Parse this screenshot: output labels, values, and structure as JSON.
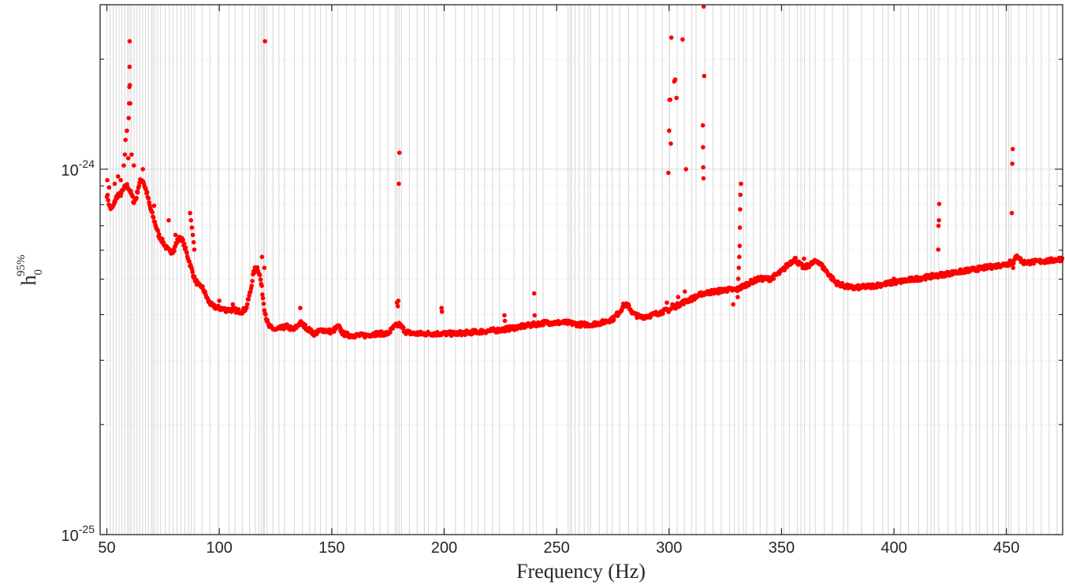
{
  "chart_data": {
    "type": "scatter",
    "title": "",
    "xlabel": "Frequency    (Hz)",
    "ylabel": {
      "base": "h",
      "subscript": "0",
      "superscript": "95%"
    },
    "xlim": [
      47,
      475
    ],
    "ylim_log10": [
      -25,
      -23.55
    ],
    "yscale": "log",
    "grid": true,
    "x_ticks": [
      50,
      100,
      150,
      200,
      250,
      300,
      350,
      400,
      450
    ],
    "x_tick_labels": [
      "50",
      "100",
      "150",
      "200",
      "250",
      "300",
      "350",
      "400",
      "450"
    ],
    "y_major_ticks": [
      {
        "value": 1e-25,
        "base": "10",
        "exp": "-25"
      },
      {
        "value": 1e-24,
        "base": "10",
        "exp": "-24"
      }
    ],
    "marker_color": "#ff0000",
    "vetoed_band_line_color": "#d9d9d9",
    "vetoed_bands_hz": [
      51.5,
      52.8,
      54.1,
      55.4,
      56.7,
      58.0,
      59.2,
      60.0,
      60.8,
      62.1,
      63.4,
      64.6,
      65.9,
      67.2,
      68.5,
      69.8,
      70.5,
      71.3,
      72.6,
      73.9,
      76.0,
      77.8,
      79.5,
      81.2,
      83.0,
      84.7,
      86.3,
      87.5,
      89.0,
      92.3,
      95.8,
      99.5,
      104.3,
      107.0,
      110.2,
      113.5,
      116.0,
      117.5,
      118.6,
      119.5,
      120.0,
      121.2,
      123.8,
      126.5,
      129.0,
      133.4,
      137.0,
      140.2,
      142.6,
      145.0,
      147.5,
      150.2,
      152.6,
      156.5,
      160.3,
      164.8,
      168.5,
      171.4,
      175.0,
      178.2,
      179.0,
      180.0,
      181.0,
      184.5,
      188.0,
      191.2,
      193.0,
      196.5,
      199.8,
      205.0,
      209.0,
      212.3,
      215.0,
      218.0,
      221.5,
      224.6,
      231.0,
      235.0,
      238.0,
      241.0,
      244.0,
      255.1,
      256.0,
      256.7,
      258.2,
      260.0,
      262.3,
      264.0,
      265.1,
      269.0,
      272.4,
      274.7,
      278.0,
      282.0,
      286.0,
      289.6,
      293.3,
      297.0,
      300.2,
      303.6,
      306.8,
      310.0,
      312.0,
      316.0,
      319.6,
      323.2,
      326.9,
      329.0,
      331.0,
      333.0,
      334.2,
      337.5,
      340.5,
      343.5,
      347.0,
      351.0,
      353.5,
      357.0,
      358.6,
      360.2,
      362.5,
      365.0,
      369.0,
      372.6,
      377.5,
      379.5,
      385.5,
      391.0,
      395.0,
      397.5,
      403.0,
      406.5,
      411.0,
      414.8,
      416.5,
      418.0,
      419.9,
      424.0,
      427.5,
      430.5,
      433.9,
      436.5,
      438.0,
      441.5,
      444.0,
      446.5,
      449.7,
      451.0,
      452.0,
      455.5,
      459.0,
      462.0,
      465.5,
      469.0,
      472.5
    ],
    "baseline_curve_log10": [
      [
        50,
        -24.07
      ],
      [
        50.5,
        -24.08
      ],
      [
        51,
        -24.1
      ],
      [
        52,
        -24.11
      ],
      [
        53,
        -24.1
      ],
      [
        54,
        -24.08
      ],
      [
        55,
        -24.07
      ],
      [
        56,
        -24.07
      ],
      [
        57,
        -24.06
      ],
      [
        58,
        -24.05
      ],
      [
        59,
        -24.045
      ],
      [
        60,
        -24.055
      ],
      [
        61,
        -24.07
      ],
      [
        62,
        -24.09
      ],
      [
        63,
        -24.08
      ],
      [
        64,
        -24.05
      ],
      [
        65,
        -24.03
      ],
      [
        66,
        -24.03
      ],
      [
        67,
        -24.05
      ],
      [
        68,
        -24.07
      ],
      [
        69,
        -24.1
      ],
      [
        70,
        -24.12
      ],
      [
        71,
        -24.14
      ],
      [
        72,
        -24.16
      ],
      [
        73,
        -24.18
      ],
      [
        74,
        -24.19
      ],
      [
        75,
        -24.2
      ],
      [
        76,
        -24.21
      ],
      [
        77,
        -24.22
      ],
      [
        78,
        -24.225
      ],
      [
        79,
        -24.225
      ],
      [
        80,
        -24.22
      ],
      [
        81,
        -24.2
      ],
      [
        82,
        -24.19
      ],
      [
        83,
        -24.19
      ],
      [
        84,
        -24.2
      ],
      [
        85,
        -24.22
      ],
      [
        86,
        -24.24
      ],
      [
        87,
        -24.26
      ],
      [
        88,
        -24.28
      ],
      [
        89,
        -24.3
      ],
      [
        90,
        -24.31
      ],
      [
        91,
        -24.32
      ],
      [
        92,
        -24.32
      ],
      [
        93,
        -24.33
      ],
      [
        95,
        -24.36
      ],
      [
        97,
        -24.375
      ],
      [
        100,
        -24.38
      ],
      [
        103,
        -24.385
      ],
      [
        106,
        -24.385
      ],
      [
        110,
        -24.39
      ],
      [
        112,
        -24.38
      ],
      [
        114,
        -24.33
      ],
      [
        115,
        -24.29
      ],
      [
        116,
        -24.27
      ],
      [
        117,
        -24.27
      ],
      [
        118,
        -24.29
      ],
      [
        119,
        -24.33
      ],
      [
        120,
        -24.38
      ],
      [
        121,
        -24.41
      ],
      [
        122,
        -24.43
      ],
      [
        125,
        -24.44
      ],
      [
        130,
        -24.43
      ],
      [
        133,
        -24.44
      ],
      [
        136,
        -24.42
      ],
      [
        138,
        -24.43
      ],
      [
        142,
        -24.45
      ],
      [
        146,
        -24.44
      ],
      [
        150,
        -24.445
      ],
      [
        153,
        -24.43
      ],
      [
        155,
        -24.45
      ],
      [
        158,
        -24.455
      ],
      [
        165,
        -24.455
      ],
      [
        170,
        -24.45
      ],
      [
        175,
        -24.45
      ],
      [
        178,
        -24.43
      ],
      [
        180,
        -24.425
      ],
      [
        183,
        -24.445
      ],
      [
        186,
        -24.45
      ],
      [
        195,
        -24.45
      ],
      [
        205,
        -24.45
      ],
      [
        215,
        -24.445
      ],
      [
        225,
        -24.44
      ],
      [
        235,
        -24.43
      ],
      [
        240,
        -24.425
      ],
      [
        245,
        -24.42
      ],
      [
        250,
        -24.42
      ],
      [
        255,
        -24.42
      ],
      [
        260,
        -24.425
      ],
      [
        265,
        -24.425
      ],
      [
        270,
        -24.42
      ],
      [
        275,
        -24.41
      ],
      [
        278,
        -24.39
      ],
      [
        280,
        -24.37
      ],
      [
        282,
        -24.375
      ],
      [
        284,
        -24.395
      ],
      [
        287,
        -24.405
      ],
      [
        292,
        -24.4
      ],
      [
        297,
        -24.39
      ],
      [
        300,
        -24.385
      ],
      [
        303,
        -24.375
      ],
      [
        306,
        -24.365
      ],
      [
        310,
        -24.355
      ],
      [
        315,
        -24.34
      ],
      [
        320,
        -24.335
      ],
      [
        325,
        -24.33
      ],
      [
        330,
        -24.33
      ],
      [
        333,
        -24.32
      ],
      [
        336,
        -24.31
      ],
      [
        340,
        -24.3
      ],
      [
        345,
        -24.3
      ],
      [
        350,
        -24.28
      ],
      [
        353,
        -24.26
      ],
      [
        356,
        -24.245
      ],
      [
        358,
        -24.26
      ],
      [
        360,
        -24.27
      ],
      [
        363,
        -24.26
      ],
      [
        366,
        -24.25
      ],
      [
        370,
        -24.28
      ],
      [
        374,
        -24.31
      ],
      [
        378,
        -24.32
      ],
      [
        382,
        -24.325
      ],
      [
        390,
        -24.32
      ],
      [
        400,
        -24.31
      ],
      [
        410,
        -24.3
      ],
      [
        420,
        -24.29
      ],
      [
        430,
        -24.28
      ],
      [
        440,
        -24.27
      ],
      [
        450,
        -24.26
      ],
      [
        453,
        -24.255
      ],
      [
        455,
        -24.235
      ],
      [
        457,
        -24.255
      ],
      [
        460,
        -24.255
      ],
      [
        470,
        -24.25
      ],
      [
        475,
        -24.245
      ]
    ],
    "outlier_points_log10": [
      [
        50.2,
        -24.03
      ],
      [
        51.0,
        -24.05
      ],
      [
        53.5,
        -24.04
      ],
      [
        55.0,
        -24.02
      ],
      [
        56.2,
        -24.03
      ],
      [
        57.5,
        -23.99
      ],
      [
        58.0,
        -23.96
      ],
      [
        58.3,
        -23.92
      ],
      [
        58.9,
        -23.895
      ],
      [
        59.5,
        -23.97
      ],
      [
        59.7,
        -23.86
      ],
      [
        59.9,
        -23.82
      ],
      [
        60.0,
        -23.775
      ],
      [
        60.1,
        -23.72
      ],
      [
        60.15,
        -23.65
      ],
      [
        60.2,
        -23.77
      ],
      [
        60.4,
        -23.82
      ],
      [
        61.0,
        -23.96
      ],
      [
        62.0,
        -23.99
      ],
      [
        66.0,
        -24.0
      ],
      [
        71.0,
        -24.1
      ],
      [
        77.5,
        -24.14
      ],
      [
        80.5,
        -24.18
      ],
      [
        87.0,
        -24.12
      ],
      [
        87.4,
        -24.14
      ],
      [
        87.8,
        -24.16
      ],
      [
        88.2,
        -24.18
      ],
      [
        88.6,
        -24.2
      ],
      [
        88.9,
        -24.22
      ],
      [
        100.0,
        -24.36
      ],
      [
        106.0,
        -24.37
      ],
      [
        119.0,
        -24.24
      ],
      [
        120.0,
        -24.27
      ],
      [
        120.3,
        -23.65
      ],
      [
        136.0,
        -24.38
      ],
      [
        179.0,
        -24.365
      ],
      [
        179.4,
        -24.375
      ],
      [
        179.6,
        -24.36
      ],
      [
        179.8,
        -24.04
      ],
      [
        180.1,
        -23.955
      ],
      [
        198.8,
        -24.38
      ],
      [
        199.0,
        -24.39
      ],
      [
        226.8,
        -24.4
      ],
      [
        227.0,
        -24.415
      ],
      [
        240.0,
        -24.34
      ],
      [
        240.2,
        -24.4
      ],
      [
        299.0,
        -24.365
      ],
      [
        299.7,
        -24.01
      ],
      [
        300.0,
        -23.895
      ],
      [
        300.2,
        -23.81
      ],
      [
        300.5,
        -23.81
      ],
      [
        300.8,
        -23.93
      ],
      [
        301.0,
        -23.64
      ],
      [
        301.5,
        -24.37
      ],
      [
        302.3,
        -23.76
      ],
      [
        302.7,
        -23.755
      ],
      [
        303.3,
        -23.805
      ],
      [
        304.0,
        -24.35
      ],
      [
        306.0,
        -23.645
      ],
      [
        307.0,
        -24.335
      ],
      [
        307.5,
        -24.0
      ],
      [
        315.0,
        -23.88
      ],
      [
        315.1,
        -23.94
      ],
      [
        315.2,
        -23.995
      ],
      [
        315.3,
        -24.025
      ],
      [
        315.4,
        -23.555
      ],
      [
        315.6,
        -23.745
      ],
      [
        322.0,
        -24.34
      ],
      [
        328.5,
        -24.37
      ],
      [
        330.5,
        -24.35
      ],
      [
        330.8,
        -24.3
      ],
      [
        331.0,
        -24.27
      ],
      [
        331.2,
        -24.24
      ],
      [
        331.4,
        -24.21
      ],
      [
        331.5,
        -24.16
      ],
      [
        331.6,
        -24.11
      ],
      [
        331.7,
        -24.07
      ],
      [
        332.0,
        -24.04
      ],
      [
        360.0,
        -24.245
      ],
      [
        400.0,
        -24.3
      ],
      [
        419.7,
        -24.22
      ],
      [
        419.8,
        -24.155
      ],
      [
        420.0,
        -24.14
      ],
      [
        420.1,
        -24.095
      ],
      [
        451.6,
        -24.25
      ],
      [
        452.4,
        -24.12
      ],
      [
        452.6,
        -23.985
      ],
      [
        452.8,
        -23.945
      ],
      [
        453.0,
        -24.27
      ]
    ]
  }
}
